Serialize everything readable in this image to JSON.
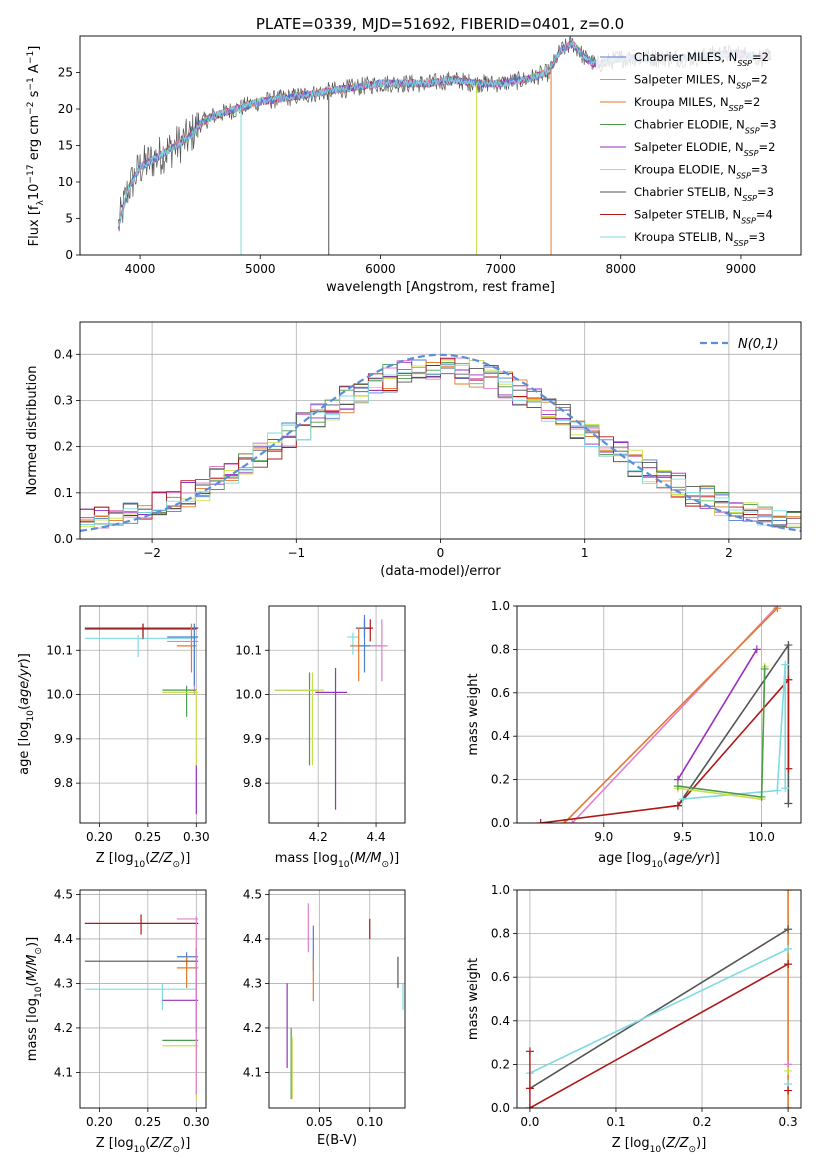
{
  "title": "PLATE=0339, MJD=51692, FIBERID=0401, z=0.0",
  "colors": {
    "chabrier_miles": "#4f7fcf",
    "salpeter_miles": "#e07fcf",
    "kroupa_miles": "#e67a2a",
    "chabrier_elodie": "#4e9a4e",
    "salpeter_elodie": "#9a2fbf",
    "kroupa_elodie": "#c9e04a",
    "chabrier_stelib": "#555555",
    "salpeter_stelib": "#b01818",
    "kroupa_stelib": "#7fdbe0",
    "gaussian": "#5b8fd8",
    "grid": "#b0b0b0"
  },
  "chart_data": [
    {
      "id": "spectrum",
      "type": "line",
      "xlabel": "wavelength [Angstrom, rest frame]",
      "ylabel": "Flux [f_λ10^-17 erg cm^-2 s^-1 A^-1]",
      "xlim": [
        3500,
        9500
      ],
      "ylim": [
        0,
        30
      ],
      "xticks": [
        4000,
        5000,
        6000,
        7000,
        8000,
        9000
      ],
      "yticks": [
        0,
        5,
        10,
        15,
        20,
        25
      ],
      "grid": false,
      "legend_position": "top-right",
      "series": [
        {
          "name": "Chabrier MILES, N_SSP=2",
          "key": "chabrier_miles"
        },
        {
          "name": "Salpeter MILES, N_SSP=2",
          "key": "salpeter_miles"
        },
        {
          "name": "Kroupa MILES, N_SSP=2",
          "key": "kroupa_miles"
        },
        {
          "name": "Chabrier ELODIE, N_SSP=3",
          "key": "chabrier_elodie"
        },
        {
          "name": "Salpeter ELODIE, N_SSP=2",
          "key": "salpeter_elodie"
        },
        {
          "name": "Kroupa ELODIE, N_SSP=3",
          "key": "kroupa_elodie"
        },
        {
          "name": "Chabrier STELIB, N_SSP=3",
          "key": "chabrier_stelib"
        },
        {
          "name": "Salpeter STELIB, N_SSP=4",
          "key": "salpeter_stelib"
        },
        {
          "name": "Kroupa STELIB, N_SSP=3",
          "key": "kroupa_stelib"
        }
      ],
      "continuum_points": {
        "x": [
          3820,
          3900,
          4000,
          4100,
          4200,
          4300,
          4400,
          4500,
          4600,
          4800,
          5000,
          5200,
          5400,
          5600,
          5800,
          6000,
          6200,
          6400,
          6600,
          6800,
          7000,
          7200,
          7400,
          7500,
          7600,
          7700,
          7800,
          8000,
          8200,
          8400,
          8600,
          8800,
          9000,
          9200
        ],
        "y": [
          4,
          9,
          12,
          13,
          14,
          15,
          16,
          18,
          19,
          20,
          21,
          21.5,
          22,
          22.5,
          23,
          23.5,
          23.5,
          23.5,
          24,
          23.5,
          23.5,
          24,
          25,
          28,
          29,
          27,
          26,
          27,
          27,
          27,
          27,
          27.5,
          27.5,
          27
        ]
      },
      "drop_lines": [
        {
          "x": 4840,
          "key": "kroupa_stelib"
        },
        {
          "x": 5570,
          "key": "chabrier_stelib"
        },
        {
          "x": 6800,
          "key": "kroupa_elodie"
        },
        {
          "x": 7420,
          "key": "kroupa_miles"
        }
      ]
    },
    {
      "id": "residuals",
      "type": "line",
      "xlabel": "(data-model)/error",
      "ylabel": "Normed distribution",
      "xlim": [
        -2.5,
        2.5
      ],
      "ylim": [
        0,
        0.47
      ],
      "xticks": [
        -2,
        -1,
        0,
        1,
        2
      ],
      "yticks": [
        0.0,
        0.1,
        0.2,
        0.3,
        0.4
      ],
      "grid": true,
      "legend_position": "top-right",
      "legend": "N(0,1)",
      "bin_width": 0.1
    },
    {
      "id": "age_vs_Z",
      "type": "scatter",
      "xlabel": "Z [log10(Z/Z☉)]",
      "ylabel": "age [log10(age/yr)]",
      "xlim": [
        0.18,
        0.31
      ],
      "ylim": [
        9.71,
        10.2
      ],
      "xticks": [
        0.2,
        0.25,
        0.3
      ],
      "yticks": [
        9.8,
        9.9,
        10.0,
        10.1
      ],
      "grid": true,
      "points": [
        {
          "key": "kroupa_stelib",
          "x": 0.185,
          "y": 10.13
        },
        {
          "key": "chabrier_stelib",
          "x": 0.185,
          "y": 10.15
        },
        {
          "key": "salpeter_stelib",
          "x": 0.185,
          "y": 10.15
        },
        {
          "key": "kroupa_miles",
          "x": 0.28,
          "y": 10.11
        },
        {
          "key": "chabrier_elodie",
          "x": 0.265,
          "y": 10.01
        },
        {
          "key": "kroupa_elodie",
          "x": 0.265,
          "y": 10.005
        },
        {
          "key": "salpeter_elodie",
          "x": 0.3,
          "y": 9.78
        }
      ]
    },
    {
      "id": "age_vs_mass",
      "type": "scatter",
      "xlabel": "mass [log10(M/M☉)]",
      "ylabel": "",
      "xlim": [
        4.03,
        4.5
      ],
      "ylim": [
        9.71,
        10.2
      ],
      "xticks": [
        4.2,
        4.4
      ],
      "yticks": [
        9.8,
        9.9,
        10.0,
        10.1
      ],
      "grid": true
    },
    {
      "id": "weight_vs_age",
      "type": "line",
      "xlabel": "age [log10(age/yr)]",
      "ylabel": "mass weight",
      "xlim": [
        8.45,
        10.25
      ],
      "ylim": [
        0,
        1
      ],
      "xticks": [
        9.0,
        9.5,
        10.0
      ],
      "yticks": [
        0.0,
        0.2,
        0.4,
        0.6,
        0.8,
        1.0
      ],
      "grid": true,
      "series": [
        {
          "key": "salpeter_miles",
          "x": [
            8.8,
            10.1
          ],
          "y": [
            0,
            1
          ]
        },
        {
          "key": "kroupa_miles",
          "x": [
            8.75,
            10.1
          ],
          "y": [
            0,
            0.99
          ]
        },
        {
          "key": "salpeter_elodie",
          "x": [
            9.47,
            9.97
          ],
          "y": [
            0.2,
            0.8
          ]
        },
        {
          "key": "chabrier_stelib",
          "x": [
            9.47,
            10.17,
            10.17
          ],
          "y": [
            0.08,
            0.82,
            0.09
          ]
        },
        {
          "key": "salpeter_stelib",
          "x": [
            8.6,
            9.47,
            10.17,
            10.17
          ],
          "y": [
            0,
            0.08,
            0.66,
            0.25
          ]
        },
        {
          "key": "kroupa_stelib",
          "x": [
            9.5,
            10.1,
            10.15,
            10.15
          ],
          "y": [
            0.11,
            0.15,
            0.73,
            0.16
          ]
        },
        {
          "key": "kroupa_elodie",
          "x": [
            9.47,
            10.0,
            10.02
          ],
          "y": [
            0.16,
            0.11,
            0.72
          ]
        },
        {
          "key": "chabrier_elodie",
          "x": [
            9.47,
            10.0,
            10.02
          ],
          "y": [
            0.17,
            0.12,
            0.71
          ]
        }
      ]
    },
    {
      "id": "mass_vs_Z",
      "type": "scatter",
      "xlabel": "Z [log10(Z/Z☉)]",
      "ylabel": "mass [log10(M/M☉)]",
      "xlim": [
        0.18,
        0.31
      ],
      "ylim": [
        4.02,
        4.51
      ],
      "xticks": [
        0.2,
        0.25,
        0.3
      ],
      "yticks": [
        4.1,
        4.2,
        4.3,
        4.4,
        4.5
      ],
      "grid": true
    },
    {
      "id": "mass_vs_ebv",
      "type": "scatter",
      "xlabel": "E(B-V)",
      "ylabel": "",
      "xlim": [
        0.0,
        0.135
      ],
      "ylim": [
        4.02,
        4.51
      ],
      "xticks": [
        0.05,
        0.1
      ],
      "yticks": [
        4.1,
        4.2,
        4.3,
        4.4,
        4.5
      ],
      "grid": true
    },
    {
      "id": "weight_vs_Z",
      "type": "line",
      "xlabel": "Z [log10(Z/Z☉)]",
      "ylabel": "mass weight",
      "xlim": [
        -0.015,
        0.315
      ],
      "ylim": [
        0,
        1
      ],
      "xticks": [
        0.0,
        0.1,
        0.2,
        0.3
      ],
      "yticks": [
        0.0,
        0.2,
        0.4,
        0.6,
        0.8,
        1.0
      ],
      "grid": true,
      "series": [
        {
          "key": "chabrier_stelib",
          "x": [
            0,
            0.3
          ],
          "y": [
            0.09,
            0.82
          ]
        },
        {
          "key": "kroupa_stelib",
          "x": [
            0,
            0.3
          ],
          "y": [
            0.16,
            0.73
          ]
        },
        {
          "key": "salpeter_stelib",
          "x": [
            0,
            0.3
          ],
          "y": [
            0,
            0.66
          ]
        },
        {
          "key": "kroupa_miles",
          "x": [
            0.3,
            0.3
          ],
          "y": [
            0,
            1
          ]
        }
      ]
    }
  ]
}
